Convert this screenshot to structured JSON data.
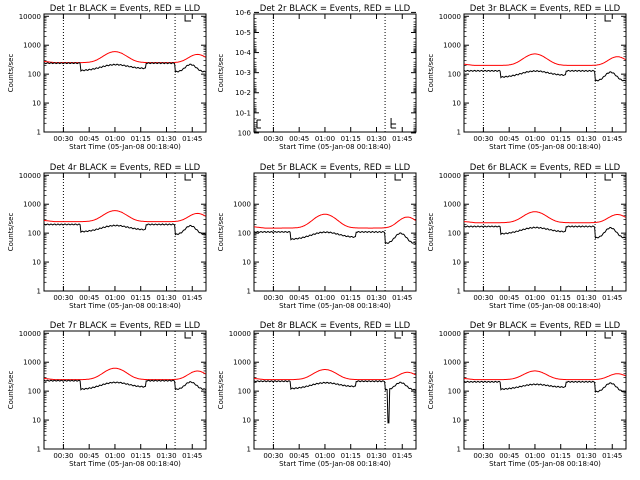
{
  "chart_data": [
    {
      "type": "line",
      "title": "Det 1r BLACK = Events, RED = LLD",
      "xlabel": "Start Time (05-Jan-08 00:18:40)",
      "ylabel": "Counts/sec",
      "yscale": "log",
      "ylim": [
        1,
        12000
      ],
      "ytick_labels": [
        "1",
        "10",
        "100",
        "1000",
        "10000"
      ],
      "xtick_labels": [
        "00:30",
        "00:45",
        "01:00",
        "01:15",
        "01:30",
        "01:45"
      ],
      "xlim_minutes": [
        18.7,
        113
      ],
      "markers_minutes": [
        30,
        95
      ],
      "profile": {
        "rb": 250,
        "rp": 600,
        "bb": 240,
        "bp": 230,
        "dip_ratio": 0.55,
        "ratio2": 0.5
      },
      "series": [
        {
          "name": "LLD",
          "color": "#ff0000"
        },
        {
          "name": "Events",
          "color": "#000000"
        }
      ]
    },
    {
      "type": "line",
      "title": "Det 2r BLACK = Events, RED = LLD",
      "xlabel": "Start Time (05-Jan-08 00:18:40)",
      "ylabel": "Counts/sec",
      "yscale": "log",
      "ylim": [
        0.9,
        1.2e-06
      ],
      "ytick_labels": [
        "10-6",
        "10-5",
        "10-4",
        "10-3",
        "10-2",
        "10-1",
        "100"
      ],
      "xtick_labels": [
        "00:30",
        "00:45",
        "01:00",
        "01:15",
        "01:30",
        "01:45"
      ],
      "xlim_minutes": [
        18.7,
        113
      ],
      "markers_minutes": [
        30,
        95
      ],
      "profile": null,
      "series": []
    },
    {
      "type": "line",
      "title": "Det 3r BLACK = Events, RED = LLD",
      "xlabel": "Start Time (05-Jan-08 00:18:40)",
      "ylabel": "Counts/sec",
      "yscale": "log",
      "ylim": [
        1,
        12000
      ],
      "ytick_labels": [
        "1",
        "10",
        "100",
        "1000",
        "10000"
      ],
      "xtick_labels": [
        "00:30",
        "00:45",
        "01:00",
        "01:15",
        "01:30",
        "01:45"
      ],
      "xlim_minutes": [
        18.7,
        113
      ],
      "markers_minutes": [
        30,
        95
      ],
      "profile": {
        "rb": 200,
        "rp": 500,
        "bb": 130,
        "bp": 140,
        "dip_ratio": 0.6,
        "ratio2": 0.45
      },
      "series": [
        {
          "name": "LLD",
          "color": "#ff0000"
        },
        {
          "name": "Events",
          "color": "#000000"
        }
      ]
    },
    {
      "type": "line",
      "title": "Det 4r BLACK = Events, RED = LLD",
      "xlabel": "Start Time (05-Jan-08 00:18:40)",
      "ylabel": "Counts/sec",
      "yscale": "log",
      "ylim": [
        1,
        12000
      ],
      "ytick_labels": [
        "1",
        "10",
        "100",
        "1000",
        "10000"
      ],
      "xtick_labels": [
        "00:30",
        "00:45",
        "01:00",
        "01:15",
        "01:30",
        "01:45"
      ],
      "xlim_minutes": [
        18.7,
        113
      ],
      "markers_minutes": [
        30,
        95
      ],
      "profile": {
        "rb": 250,
        "rp": 600,
        "bb": 200,
        "bp": 200,
        "dip_ratio": 0.55,
        "ratio2": 0.45
      },
      "series": [
        {
          "name": "LLD",
          "color": "#ff0000"
        },
        {
          "name": "Events",
          "color": "#000000"
        }
      ]
    },
    {
      "type": "line",
      "title": "Det 5r BLACK = Events, RED = LLD",
      "xlabel": "Start Time (05-Jan-08 00:18:40)",
      "ylabel": "Counts/sec",
      "yscale": "log",
      "ylim": [
        1,
        12000
      ],
      "ytick_labels": [
        "1",
        "10",
        "100",
        "1000"
      ],
      "xtick_labels": [
        "00:30",
        "00:45",
        "01:00",
        "01:15",
        "01:30",
        "01:45"
      ],
      "xlim_minutes": [
        18.7,
        113
      ],
      "markers_minutes": [
        30,
        95
      ],
      "profile": {
        "rb": 150,
        "rp": 450,
        "bb": 110,
        "bp": 120,
        "dip_ratio": 0.55,
        "ratio2": 0.4
      },
      "series": [
        {
          "name": "LLD",
          "color": "#ff0000"
        },
        {
          "name": "Events",
          "color": "#000000"
        }
      ]
    },
    {
      "type": "line",
      "title": "Det 6r BLACK = Events, RED = LLD",
      "xlabel": "Start Time (05-Jan-08 00:18:40)",
      "ylabel": "Counts/sec",
      "yscale": "log",
      "ylim": [
        1,
        12000
      ],
      "ytick_labels": [
        "1",
        "10",
        "100",
        "1000",
        "10000"
      ],
      "xtick_labels": [
        "00:30",
        "00:45",
        "01:00",
        "01:15",
        "01:30",
        "01:45"
      ],
      "xlim_minutes": [
        18.7,
        113
      ],
      "markers_minutes": [
        30,
        95
      ],
      "profile": {
        "rb": 230,
        "rp": 550,
        "bb": 170,
        "bp": 170,
        "dip_ratio": 0.55,
        "ratio2": 0.4
      },
      "series": [
        {
          "name": "LLD",
          "color": "#ff0000"
        },
        {
          "name": "Events",
          "color": "#000000"
        }
      ]
    },
    {
      "type": "line",
      "title": "Det 7r BLACK = Events, RED = LLD",
      "xlabel": "Start Time (05-Jan-08 00:18:40)",
      "ylabel": "Counts/sec",
      "yscale": "log",
      "ylim": [
        1,
        12000
      ],
      "ytick_labels": [
        "1",
        "10",
        "100",
        "1000",
        "10000"
      ],
      "xtick_labels": [
        "00:30",
        "00:45",
        "01:00",
        "01:15",
        "01:30",
        "01:45"
      ],
      "xlim_minutes": [
        18.7,
        113
      ],
      "markers_minutes": [
        30,
        95
      ],
      "profile": {
        "rb": 250,
        "rp": 620,
        "bb": 230,
        "bp": 220,
        "dip_ratio": 0.5,
        "ratio2": 0.5
      },
      "series": [
        {
          "name": "LLD",
          "color": "#ff0000"
        },
        {
          "name": "Events",
          "color": "#000000"
        }
      ]
    },
    {
      "type": "line",
      "title": "Det 8r BLACK = Events, RED = LLD",
      "xlabel": "Start Time (05-Jan-08 00:18:40)",
      "ylabel": "Counts/sec",
      "yscale": "log",
      "ylim": [
        1,
        12000
      ],
      "ytick_labels": [
        "1",
        "10",
        "100",
        "1000",
        "10000"
      ],
      "xtick_labels": [
        "00:30",
        "00:45",
        "01:00",
        "01:15",
        "01:30",
        "01:45"
      ],
      "xlim_minutes": [
        18.7,
        113
      ],
      "markers_minutes": [
        30,
        95
      ],
      "profile": {
        "rb": 250,
        "rp": 560,
        "bb": 220,
        "bp": 210,
        "dip_ratio": 0.55,
        "ratio2": 0.5,
        "spike_minute": 97,
        "spike_min": 8
      },
      "series": [
        {
          "name": "LLD",
          "color": "#ff0000"
        },
        {
          "name": "Events",
          "color": "#000000"
        }
      ]
    },
    {
      "type": "line",
      "title": "Det 9r BLACK = Events, RED = LLD",
      "xlabel": "Start Time (05-Jan-08 00:18:40)",
      "ylabel": "Counts/sec",
      "yscale": "log",
      "ylim": [
        1,
        12000
      ],
      "ytick_labels": [
        "1",
        "10",
        "100",
        "1000",
        "10000"
      ],
      "xtick_labels": [
        "00:30",
        "00:45",
        "01:00",
        "01:15",
        "01:30",
        "01:45"
      ],
      "xlim_minutes": [
        18.7,
        113
      ],
      "markers_minutes": [
        30,
        95
      ],
      "profile": {
        "rb": 250,
        "rp": 500,
        "bb": 210,
        "bp": 180,
        "dip_ratio": 0.55,
        "ratio2": 0.45
      },
      "series": [
        {
          "name": "LLD",
          "color": "#ff0000"
        },
        {
          "name": "Events",
          "color": "#000000"
        }
      ]
    }
  ]
}
